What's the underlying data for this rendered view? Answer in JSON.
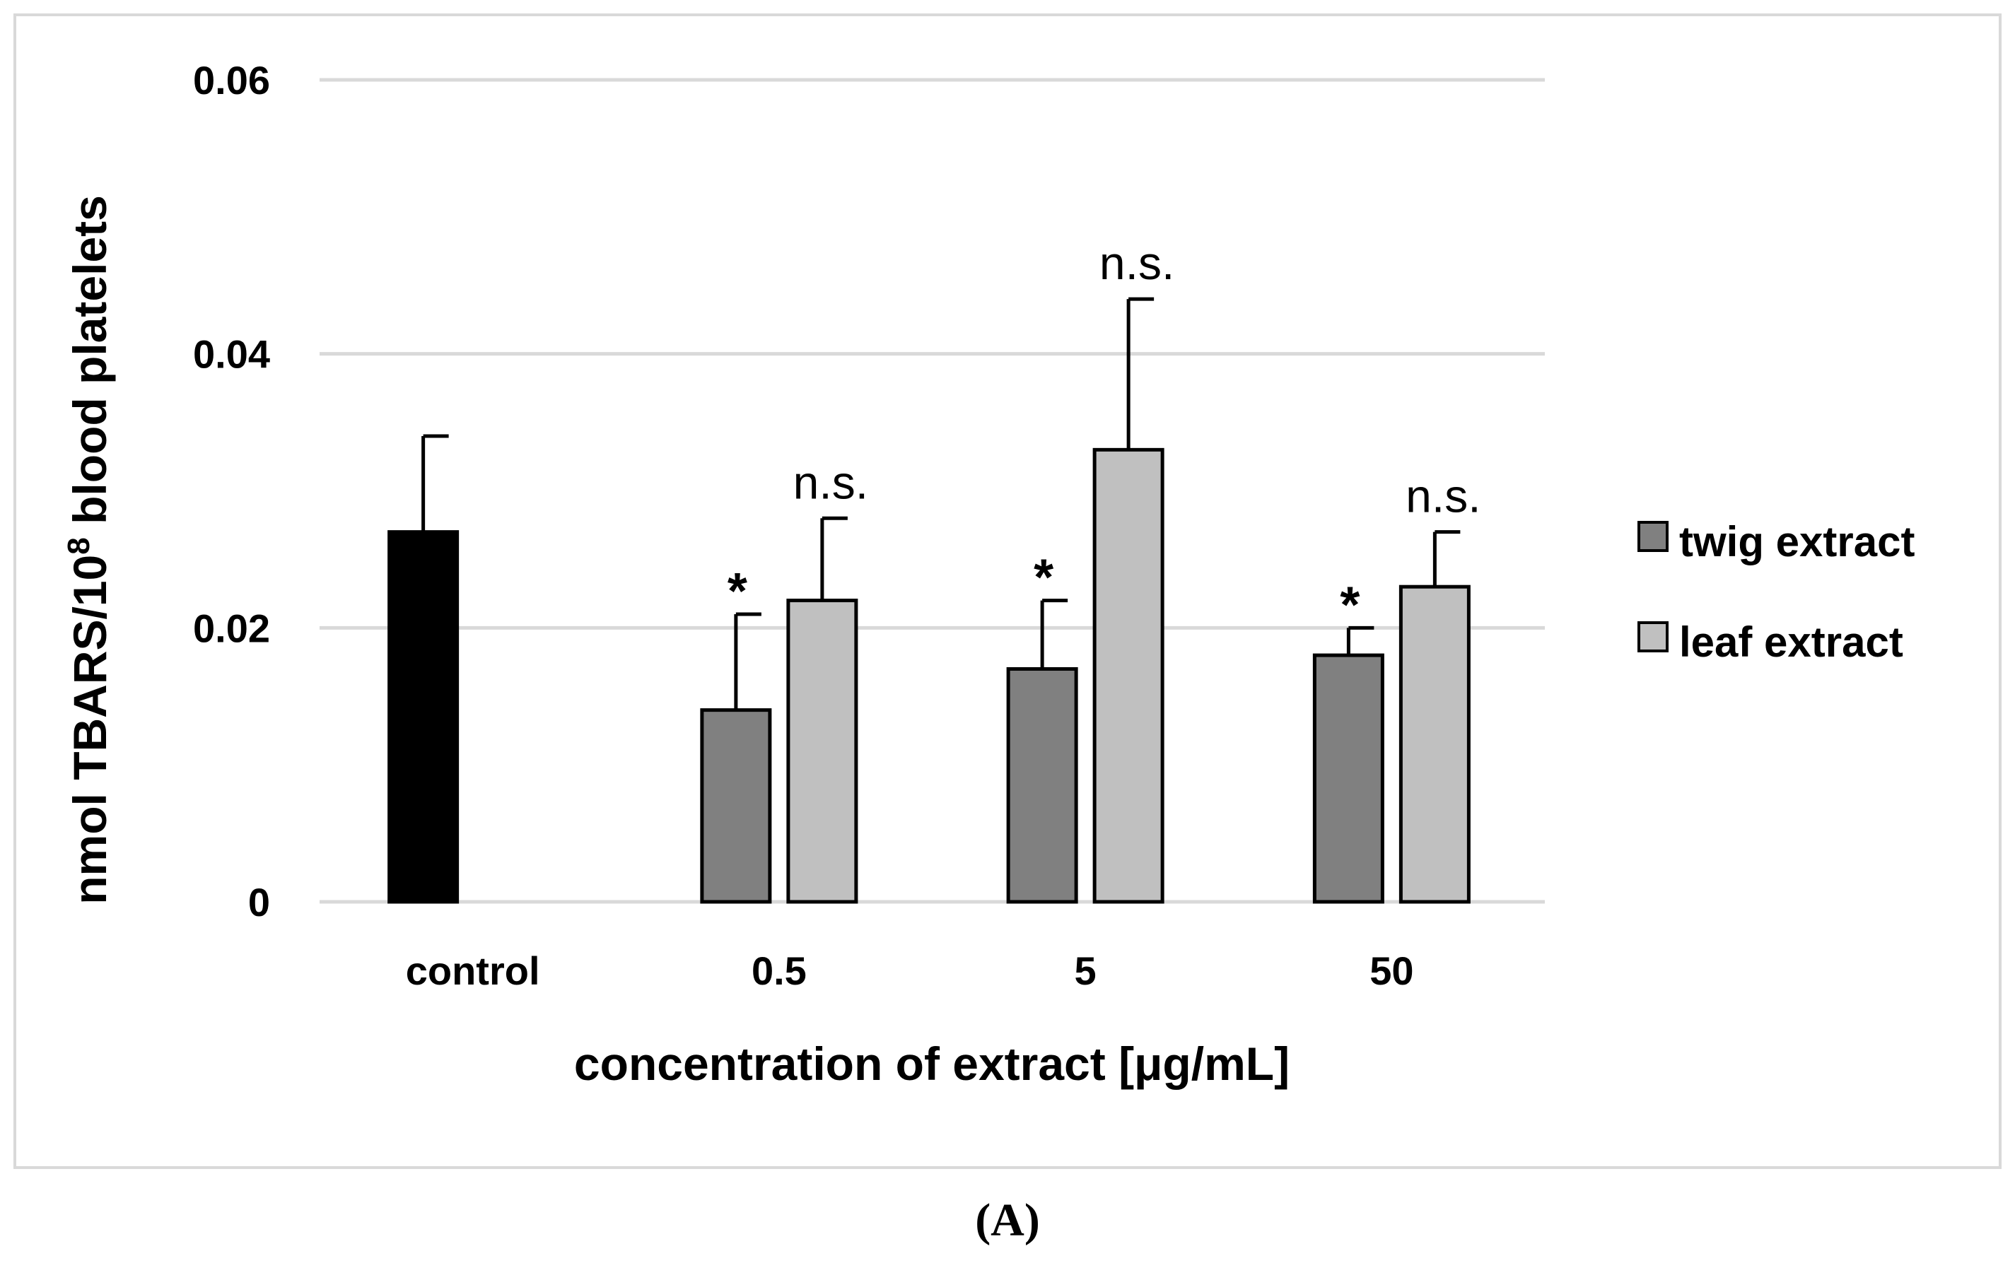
{
  "chart_data": {
    "type": "bar",
    "ylabel_main": "nmol TBARS/10",
    "ylabel_sup": "8",
    "ylabel_tail": " blood platelets",
    "xlabel": "concentration of extract [μg/mL]",
    "ylim": [
      0,
      0.06
    ],
    "yticks": [
      0,
      0.02,
      0.04,
      0.06
    ],
    "ytick_labels": [
      "0",
      "0.02",
      "0.04",
      "0.06"
    ],
    "categories": [
      "control",
      "0.5",
      "5",
      "50"
    ],
    "colors": {
      "control": "#000000",
      "twig": "#808080",
      "leaf": "#c0c0c0",
      "grid": "#d9d9d9",
      "frame": "#d9d9d9"
    },
    "control": {
      "value": 0.027,
      "error": 0.007
    },
    "series": [
      {
        "name": "twig extract",
        "key": "twig",
        "values": [
          null,
          0.014,
          0.017,
          0.018
        ],
        "errors": [
          null,
          0.007,
          0.005,
          0.002
        ],
        "annotations": [
          "",
          "*",
          "*",
          "*"
        ]
      },
      {
        "name": "leaf extract",
        "key": "leaf",
        "values": [
          null,
          0.022,
          0.033,
          0.023
        ],
        "errors": [
          null,
          0.006,
          0.011,
          0.004
        ],
        "annotations": [
          "",
          "n.s.",
          "n.s.",
          "n.s."
        ]
      }
    ],
    "legend_position": "right",
    "panel_label": "(A)"
  }
}
